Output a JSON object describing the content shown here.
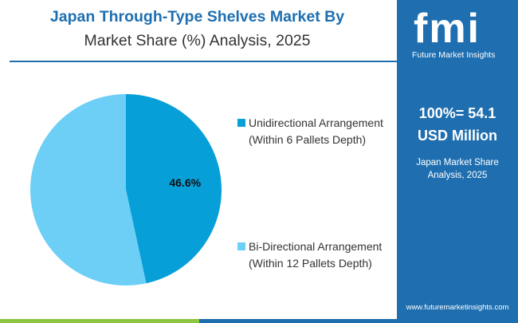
{
  "header": {
    "title_line1": "Japan Through-Type Shelves Market By",
    "title_line2": "Market Share (%) Analysis, 2025"
  },
  "chart_data": {
    "type": "pie",
    "slices": [
      {
        "label": "Unidirectional Arrangement (Within 6 Pallets Depth)",
        "value": 46.6,
        "display": "46.6%",
        "color": "#079fd8"
      },
      {
        "label": "Bi-Directional Arrangement (Within 12 Pallets Depth)",
        "value": 53.4,
        "display": "",
        "color": "#6dcff6"
      }
    ],
    "legend": [
      {
        "line1": "Unidirectional Arrangement",
        "line2": "(Within 6 Pallets Depth)",
        "color": "#079fd8"
      },
      {
        "line1": "Bi-Directional Arrangement",
        "line2": "(Within 12 Pallets Depth)",
        "color": "#6dcff6"
      }
    ],
    "legend_position": "right"
  },
  "sidebar": {
    "logo_letters": "fmi",
    "logo_subtitle": "Future Market Insights",
    "total_line1": "100%= 54.1",
    "total_line2": "USD Million",
    "region_line1": "Japan Market Share",
    "region_line2": "Analysis, 2025",
    "website": "www.futuremarketinsights.com"
  },
  "colors": {
    "brand": "#1f6fb0",
    "slice_primary": "#079fd8",
    "slice_secondary": "#6dcff6",
    "bottom_green": "#8dc63f",
    "bottom_blue": "#1f6fb0"
  }
}
